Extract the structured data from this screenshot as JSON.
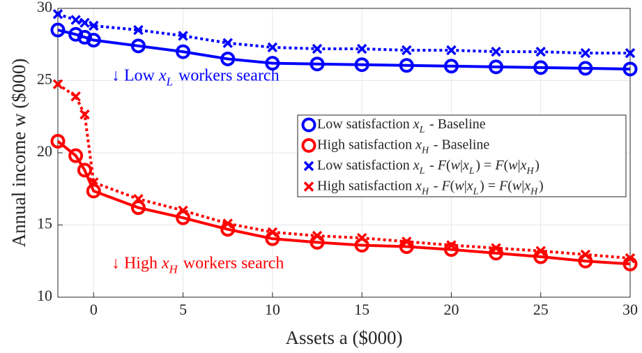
{
  "chart_data": {
    "type": "line",
    "x_label": "Assets a ($000)",
    "y_label": "Annual income w ($000)",
    "x": [
      -2,
      -1,
      -0.5,
      0,
      2.5,
      5,
      7.5,
      10,
      12.5,
      15,
      17.5,
      20,
      22.5,
      25,
      27.5,
      30
    ],
    "xlim": [
      -2,
      30
    ],
    "xticks": [
      0,
      5,
      10,
      15,
      20,
      25,
      30
    ],
    "ylim": [
      10,
      30
    ],
    "yticks": [
      10,
      15,
      20,
      25,
      30
    ],
    "grid": true,
    "legend": "upper right",
    "annotations": [
      {
        "text": "↓ Low x_L workers search",
        "color": "#0000ff",
        "x": 1,
        "y": 25.3
      },
      {
        "text": "↓ High x_H workers search",
        "color": "#ff0000",
        "x": 1,
        "y": 12.3
      }
    ],
    "series": [
      {
        "name": "Low satisfaction x_L - Baseline",
        "color": "#0000ff",
        "marker": "circle",
        "linestyle": "solid",
        "values": [
          28.5,
          28.2,
          28.0,
          27.8,
          27.4,
          27.0,
          26.5,
          26.2,
          26.15,
          26.1,
          26.05,
          26.0,
          25.95,
          25.9,
          25.85,
          25.8
        ]
      },
      {
        "name": "High satisfaction x_H - Baseline",
        "color": "#ff0000",
        "marker": "circle",
        "linestyle": "solid",
        "values": [
          20.8,
          19.8,
          18.8,
          17.35,
          16.2,
          15.5,
          14.7,
          14.05,
          13.8,
          13.6,
          13.5,
          13.3,
          13.05,
          12.8,
          12.5,
          12.3
        ]
      },
      {
        "name": "Low satisfaction x_L - F(w|x_L) = F(w|x_H)",
        "color": "#0000ff",
        "marker": "cross",
        "linestyle": "dotted",
        "values": [
          29.6,
          29.2,
          29.0,
          28.8,
          28.5,
          28.1,
          27.6,
          27.3,
          27.2,
          27.2,
          27.1,
          27.1,
          27.0,
          27.0,
          26.9,
          26.9
        ]
      },
      {
        "name": "High satisfaction x_H - F(w|x_L) = F(w|x_H)",
        "color": "#ff0000",
        "marker": "cross",
        "linestyle": "dotted",
        "values": [
          24.75,
          23.9,
          22.65,
          17.95,
          16.8,
          16.0,
          15.1,
          14.5,
          14.25,
          14.1,
          13.85,
          13.6,
          13.4,
          13.2,
          12.95,
          12.7
        ]
      }
    ]
  }
}
